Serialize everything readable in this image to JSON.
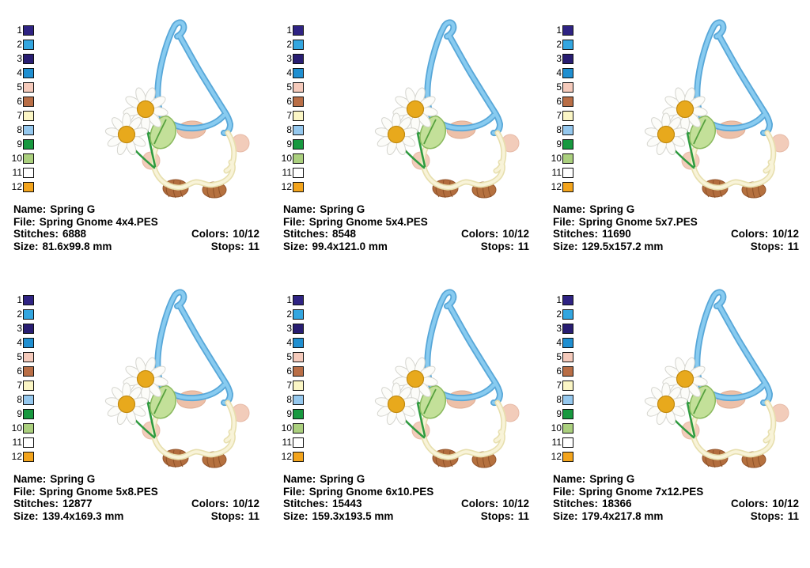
{
  "palette": {
    "swatches": [
      {
        "n": "1",
        "color": "#2f2383"
      },
      {
        "n": "2",
        "color": "#33a6e0"
      },
      {
        "n": "3",
        "color": "#281d72"
      },
      {
        "n": "4",
        "color": "#1f8fd1"
      },
      {
        "n": "5",
        "color": "#f5cabb"
      },
      {
        "n": "6",
        "color": "#b96e46"
      },
      {
        "n": "7",
        "color": "#fbf6c5"
      },
      {
        "n": "8",
        "color": "#95c8ee"
      },
      {
        "n": "9",
        "color": "#17993f"
      },
      {
        "n": "10",
        "color": "#abd07e"
      },
      {
        "n": "11",
        "color": "#ffffff"
      },
      {
        "n": "12",
        "color": "#f3a41c"
      }
    ]
  },
  "labels": {
    "name": "Name:",
    "file": "File:",
    "stitches": "Stitches:",
    "colors": "Colors:",
    "size": "Size:",
    "stops": "Stops:"
  },
  "designs": [
    {
      "name": "Spring G",
      "file": "Spring Gnome 4x4.PES",
      "stitches": "6888",
      "colors": "10/12",
      "size": "81.6x99.8 mm",
      "stops": "11"
    },
    {
      "name": "Spring G",
      "file": "Spring Gnome 5x4.PES",
      "stitches": "8548",
      "colors": "10/12",
      "size": "99.4x121.0 mm",
      "stops": "11"
    },
    {
      "name": "Spring G",
      "file": "Spring Gnome 5x7.PES",
      "stitches": "11690",
      "colors": "10/12",
      "size": "129.5x157.2 mm",
      "stops": "11"
    },
    {
      "name": "Spring G",
      "file": "Spring Gnome 5x8.PES",
      "stitches": "12877",
      "colors": "10/12",
      "size": "139.4x169.3 mm",
      "stops": "11"
    },
    {
      "name": "Spring G",
      "file": "Spring Gnome 6x10.PES",
      "stitches": "15443",
      "colors": "10/12",
      "size": "159.3x193.5 mm",
      "stops": "11"
    },
    {
      "name": "Spring G",
      "file": "Spring Gnome 7x12.PES",
      "stitches": "18366",
      "colors": "10/12",
      "size": "179.4x217.8 mm",
      "stops": "11"
    }
  ]
}
